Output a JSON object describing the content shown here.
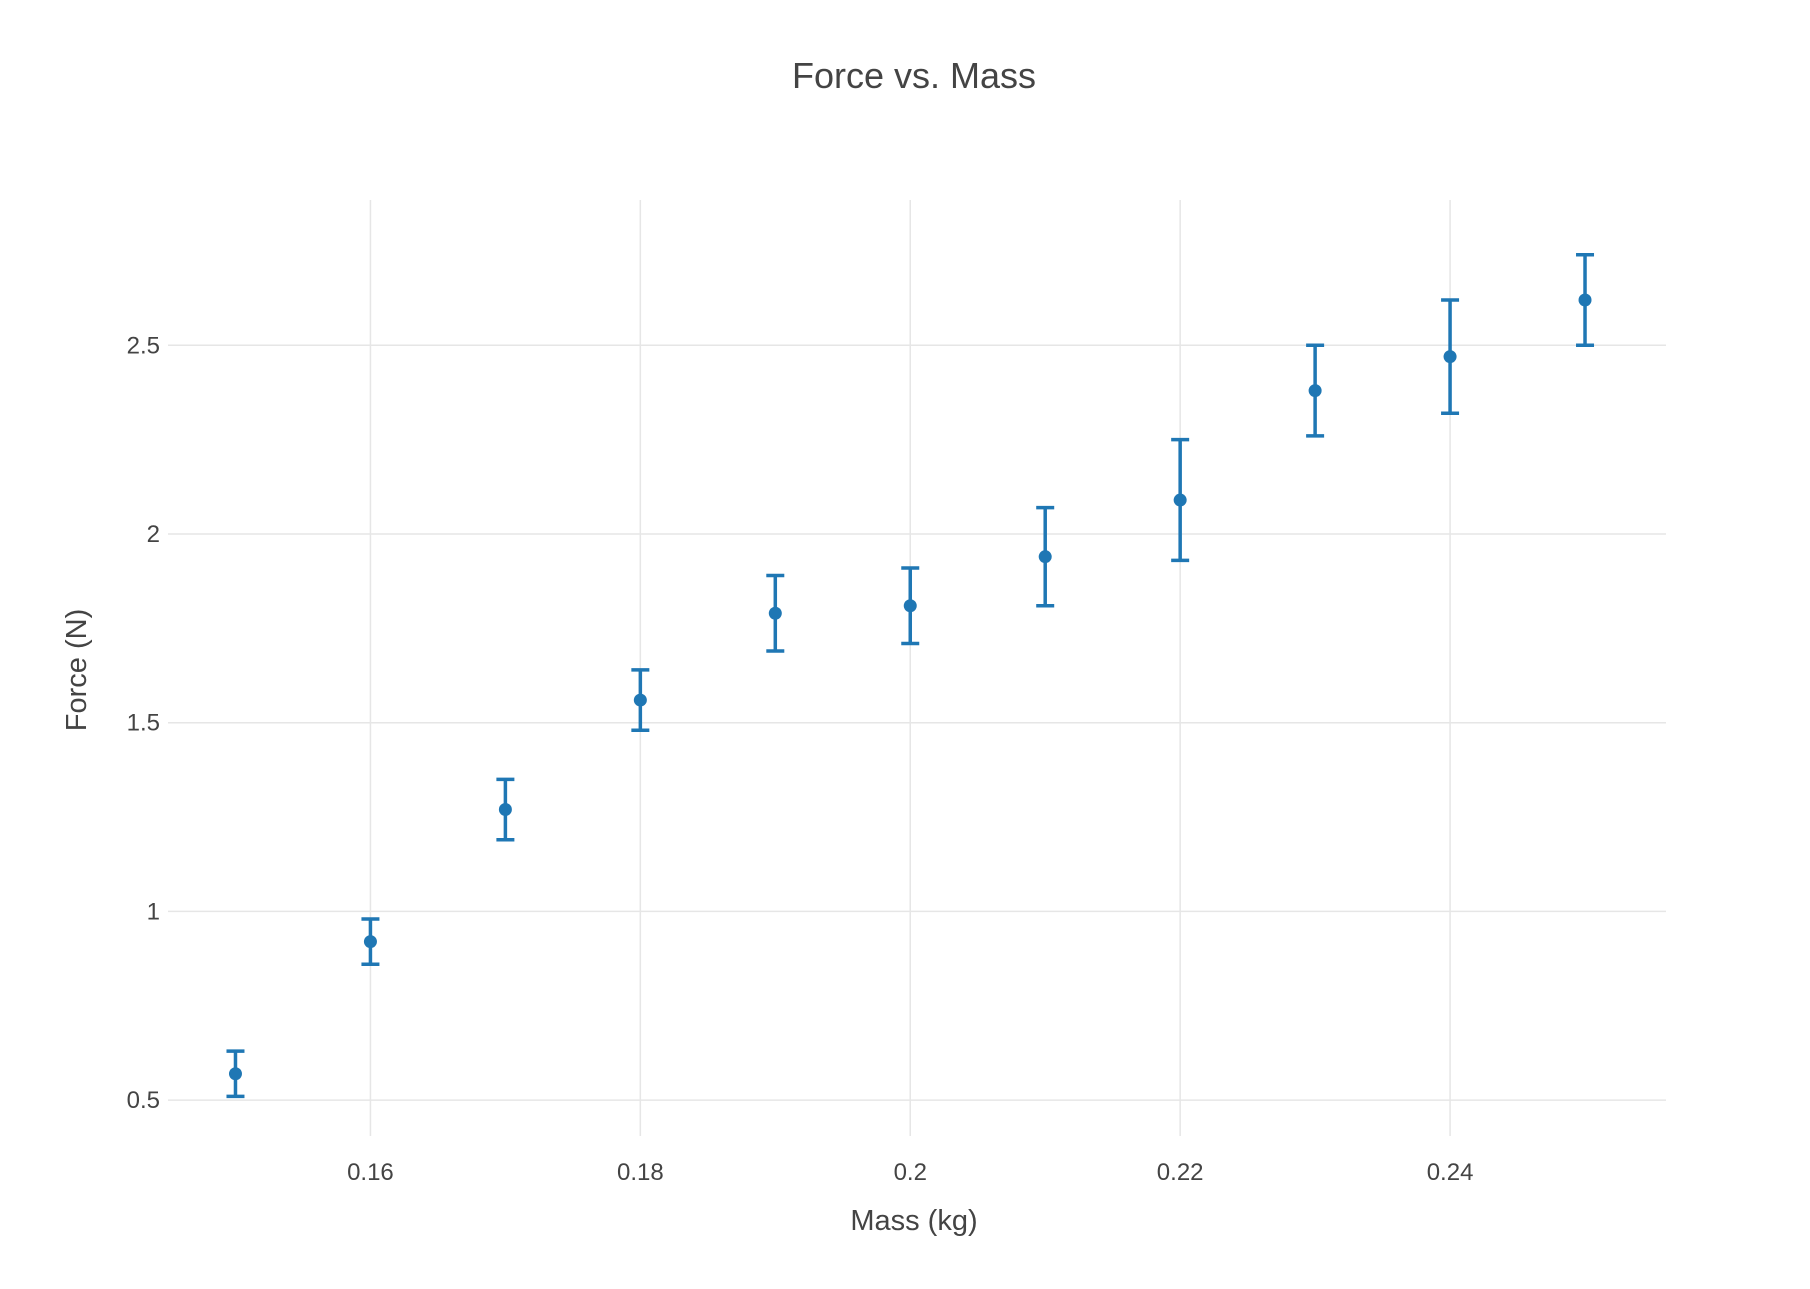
{
  "chart_data": {
    "type": "scatter",
    "title": "Force vs. Mass",
    "xlabel": "Mass (kg)",
    "ylabel": "Force (N)",
    "xlim": [
      0.145,
      0.256
    ],
    "ylim": [
      0.405,
      2.885
    ],
    "x_ticks": [
      0.16,
      0.18,
      0.2,
      0.22,
      0.24
    ],
    "x_tick_labels": [
      "0.16",
      "0.18",
      "0.2",
      "0.22",
      "0.24"
    ],
    "y_ticks": [
      0.5,
      1,
      1.5,
      2,
      2.5
    ],
    "y_tick_labels": [
      "0.5",
      "1",
      "1.5",
      "2",
      "2.5"
    ],
    "grid": true,
    "legend": "none",
    "series": [
      {
        "color": "#1f77b4",
        "mode": "markers with error bars",
        "points": [
          {
            "x": 0.15,
            "y": 0.57,
            "err_plus": 0.06,
            "err_minus": 0.06
          },
          {
            "x": 0.16,
            "y": 0.92,
            "err_plus": 0.06,
            "err_minus": 0.06
          },
          {
            "x": 0.17,
            "y": 1.27,
            "err_plus": 0.08,
            "err_minus": 0.08
          },
          {
            "x": 0.18,
            "y": 1.56,
            "err_plus": 0.08,
            "err_minus": 0.08
          },
          {
            "x": 0.19,
            "y": 1.79,
            "err_plus": 0.1,
            "err_minus": 0.1
          },
          {
            "x": 0.2,
            "y": 1.81,
            "err_plus": 0.1,
            "err_minus": 0.1
          },
          {
            "x": 0.21,
            "y": 1.94,
            "err_plus": 0.13,
            "err_minus": 0.13
          },
          {
            "x": 0.22,
            "y": 2.09,
            "err_plus": 0.16,
            "err_minus": 0.16
          },
          {
            "x": 0.23,
            "y": 2.38,
            "err_plus": 0.12,
            "err_minus": 0.12
          },
          {
            "x": 0.24,
            "y": 2.47,
            "err_plus": 0.15,
            "err_minus": 0.15
          },
          {
            "x": 0.25,
            "y": 2.62,
            "err_plus": 0.12,
            "err_minus": 0.12
          }
        ]
      }
    ]
  }
}
